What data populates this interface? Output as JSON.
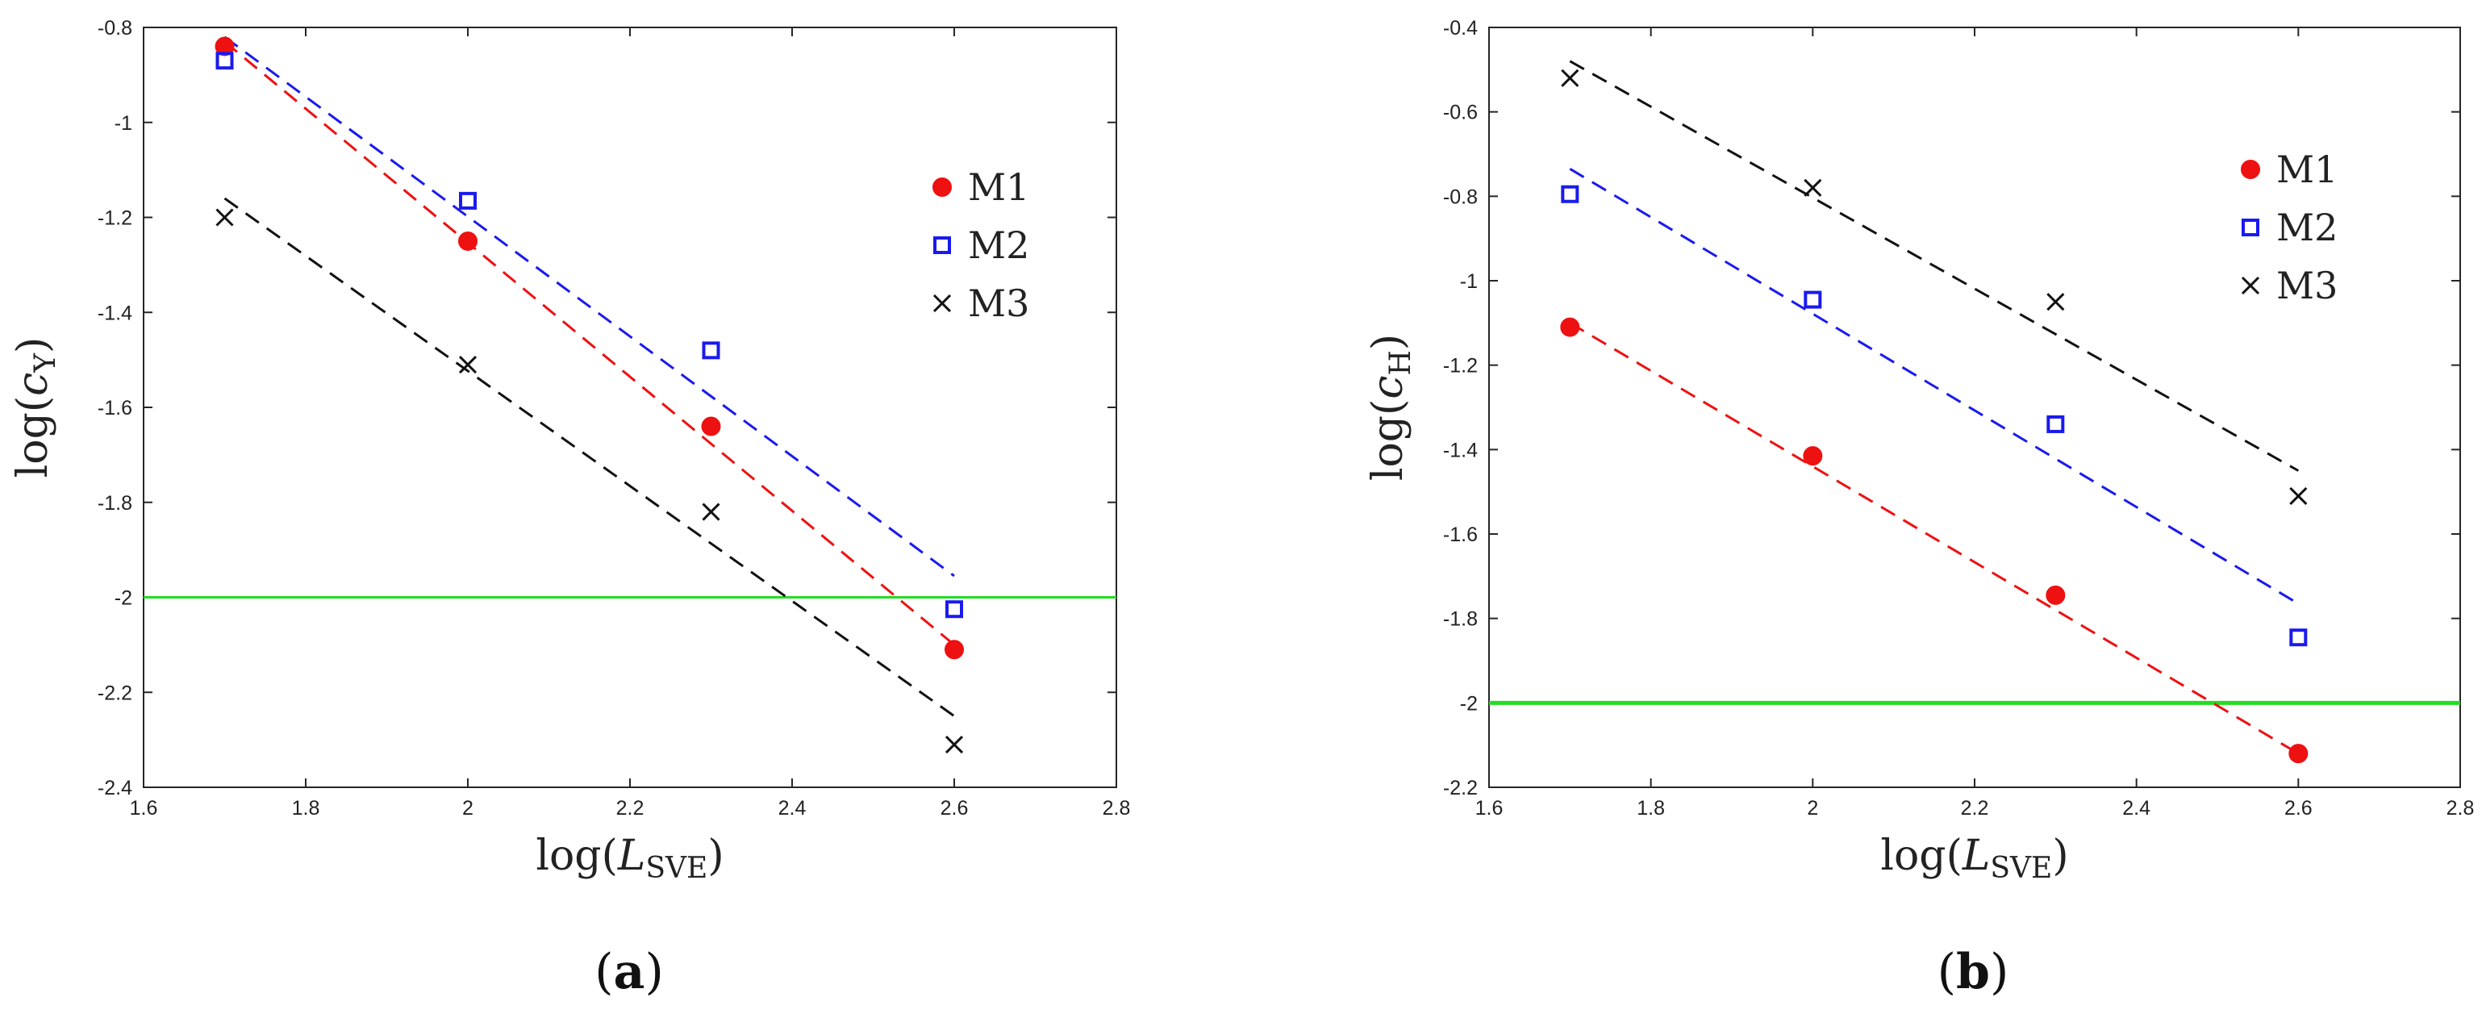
{
  "chart_data": [
    {
      "type": "scatter",
      "panel_label": "a",
      "xlabel": {
        "prefix": "log(",
        "var": "L",
        "sub": "SVE",
        "suffix": ")"
      },
      "ylabel": {
        "prefix": "log(",
        "var": "c",
        "sub": "Y",
        "suffix": ")"
      },
      "xlim": [
        1.6,
        2.8
      ],
      "ylim": [
        -2.4,
        -0.8
      ],
      "xticks": [
        1.6,
        1.8,
        2,
        2.2,
        2.4,
        2.6,
        2.8
      ],
      "xtick_labels": [
        "1.6",
        "1.8",
        "2",
        "2.2",
        "2.4",
        "2.6",
        "2.8"
      ],
      "yticks": [
        -2.4,
        -2.2,
        -2,
        -1.8,
        -1.6,
        -1.4,
        -1.2,
        -1,
        -0.8
      ],
      "ytick_labels": [
        "-2.4",
        "-2.2",
        "-2",
        "-1.8",
        "-1.6",
        "-1.4",
        "-1.2",
        "-1",
        "-0.8"
      ],
      "legend_position": "top-right",
      "threshold": {
        "y": -2,
        "color": "#22dd22"
      },
      "series": [
        {
          "name": "M1",
          "marker": "filled-circle",
          "color": "#ee1111",
          "x": [
            1.7,
            2.0,
            2.3,
            2.6
          ],
          "y": [
            -0.84,
            -1.25,
            -1.64,
            -2.11
          ],
          "fit": [
            [
              1.7,
              -0.83
            ],
            [
              2.6,
              -2.1
            ]
          ]
        },
        {
          "name": "M2",
          "marker": "open-square",
          "color": "#1a1aee",
          "x": [
            1.7,
            2.0,
            2.3,
            2.6
          ],
          "y": [
            -0.87,
            -1.165,
            -1.48,
            -2.025
          ],
          "fit": [
            [
              1.7,
              -0.82
            ],
            [
              2.6,
              -1.955
            ]
          ]
        },
        {
          "name": "M3",
          "marker": "cross",
          "color": "#111111",
          "x": [
            1.7,
            2.0,
            2.3,
            2.6
          ],
          "y": [
            -1.2,
            -1.51,
            -1.82,
            -2.31
          ],
          "fit": [
            [
              1.7,
              -1.16
            ],
            [
              2.6,
              -2.25
            ]
          ]
        }
      ]
    },
    {
      "type": "scatter",
      "panel_label": "b",
      "xlabel": {
        "prefix": "log(",
        "var": "L",
        "sub": "SVE",
        "suffix": ")"
      },
      "ylabel": {
        "prefix": "log(",
        "var": "c",
        "sub": "H",
        "suffix": ")"
      },
      "xlim": [
        1.6,
        2.8
      ],
      "ylim": [
        -2.2,
        -0.4
      ],
      "xticks": [
        1.6,
        1.8,
        2,
        2.2,
        2.4,
        2.6,
        2.8
      ],
      "xtick_labels": [
        "1.6",
        "1.8",
        "2",
        "2.2",
        "2.4",
        "2.6",
        "2.8"
      ],
      "yticks": [
        -2.2,
        -2,
        -1.8,
        -1.6,
        -1.4,
        -1.2,
        -1,
        -0.8,
        -0.6,
        -0.4
      ],
      "ytick_labels": [
        "-2.2",
        "-2",
        "-1.8",
        "-1.6",
        "-1.4",
        "-1.2",
        "-1",
        "-0.8",
        "-0.6",
        "-0.4"
      ],
      "legend_position": "top-right",
      "threshold": {
        "y": -2,
        "color": "#22dd22"
      },
      "series": [
        {
          "name": "M1",
          "marker": "filled-circle",
          "color": "#ee1111",
          "x": [
            1.7,
            2.0,
            2.3,
            2.6
          ],
          "y": [
            -1.11,
            -1.415,
            -1.745,
            -2.12
          ],
          "fit": [
            [
              1.7,
              -1.1
            ],
            [
              2.6,
              -2.12
            ]
          ]
        },
        {
          "name": "M2",
          "marker": "open-square",
          "color": "#1a1aee",
          "x": [
            1.7,
            2.0,
            2.3,
            2.6
          ],
          "y": [
            -0.795,
            -1.045,
            -1.34,
            -1.845
          ],
          "fit": [
            [
              1.7,
              -0.735
            ],
            [
              2.6,
              -1.765
            ]
          ]
        },
        {
          "name": "M3",
          "marker": "cross",
          "color": "#111111",
          "x": [
            1.7,
            2.0,
            2.3,
            2.6
          ],
          "y": [
            -0.52,
            -0.78,
            -1.05,
            -1.51
          ],
          "fit": [
            [
              1.7,
              -0.48
            ],
            [
              2.6,
              -1.45
            ]
          ]
        }
      ]
    }
  ]
}
